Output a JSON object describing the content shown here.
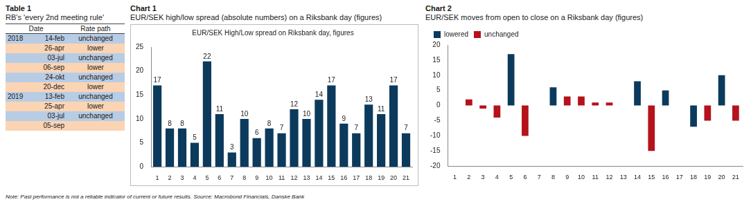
{
  "table": {
    "title": "Table 1",
    "subtitle": "RB's 'every 2nd meeting rule'",
    "header": [
      "Date",
      "Rate path"
    ],
    "rows": [
      [
        "2018",
        "14-feb",
        "unchanged"
      ],
      [
        null,
        "26-apr",
        "lower"
      ],
      [
        null,
        "03-jul",
        "unchanged"
      ],
      [
        null,
        "06-sep",
        "lower"
      ],
      [
        null,
        "24-okt",
        "unchanged"
      ],
      [
        null,
        "20-dec",
        "lower"
      ],
      [
        "2019",
        "13-feb",
        "unchanged"
      ],
      [
        null,
        "25-apr",
        "lower"
      ],
      [
        null,
        "03-jul",
        "unchanged"
      ],
      [
        null,
        "05-sep",
        null
      ]
    ],
    "colors": [
      "#b8cce4",
      "#fbd4b4",
      "#b8cce4",
      "#fbd4b4",
      "#b8cce4",
      "#fbd4b4",
      "#b8cce4",
      "#fbd4b4",
      "#b8cce4",
      "#fbd4b4"
    ]
  },
  "chart_data": [
    {
      "type": "bar",
      "title": "Chart 1",
      "subtitle": "EUR/SEK high/low spread (absolute numbers) on a Riksbank day (figures)",
      "plot_title": "EUR/SEK High/Low spread on Riksbank day, figures",
      "categories": [
        1,
        2,
        3,
        4,
        5,
        6,
        7,
        8,
        9,
        10,
        11,
        12,
        13,
        14,
        15,
        16,
        17,
        18,
        19,
        20,
        21
      ],
      "values": [
        17,
        8,
        8,
        5,
        22,
        11,
        3,
        10,
        6,
        8,
        7,
        12,
        10,
        14,
        17,
        9,
        7,
        13,
        11,
        17,
        7
      ],
      "color": "#0b3a5c",
      "ylim": [
        0,
        25
      ],
      "yticks": [
        0,
        5,
        10,
        15,
        20,
        25
      ],
      "grid": false,
      "data_labels": true
    },
    {
      "type": "bar",
      "title": "Chart 2",
      "subtitle": "EUR/SEK moves from open to close on a Riksbank day (figures)",
      "categories": [
        1,
        2,
        3,
        4,
        5,
        6,
        7,
        8,
        9,
        10,
        11,
        12,
        13,
        14,
        15,
        16,
        17,
        18,
        19,
        20,
        21
      ],
      "series": [
        {
          "name": "lowered",
          "color": "#0b3a5c",
          "values": [
            null,
            null,
            null,
            null,
            17,
            null,
            null,
            6,
            null,
            null,
            null,
            null,
            null,
            8,
            null,
            5,
            null,
            -7,
            null,
            10,
            null
          ]
        },
        {
          "name": "unchanged",
          "color": "#b5121b",
          "values": [
            null,
            2,
            -1,
            -4,
            null,
            -10,
            null,
            null,
            3,
            3,
            1,
            1,
            null,
            null,
            -15,
            null,
            null,
            null,
            -5,
            null,
            -5
          ]
        }
      ],
      "ylim": [
        -20,
        20
      ],
      "yticks": [
        -20,
        -15,
        -10,
        -5,
        0,
        5,
        10,
        15,
        20
      ],
      "grid": false,
      "stacked": true,
      "legend": "top"
    }
  ],
  "footnote": "Note: Past performance is not a reliable indicator of current or future results. Source: Macrobond Financials, Danske Bank"
}
